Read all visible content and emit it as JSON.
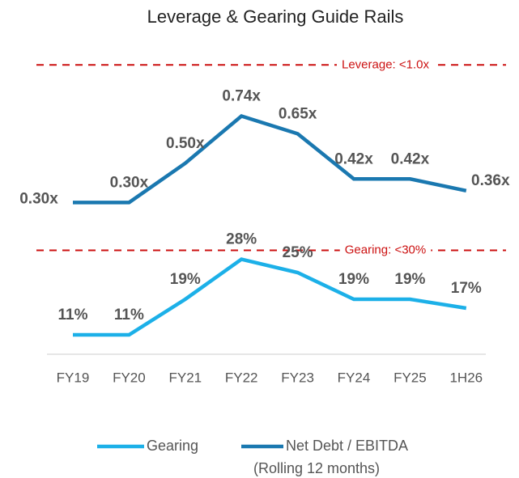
{
  "chart_data": {
    "type": "line",
    "title": "Leverage & Gearing Guide Rails",
    "categories": [
      "FY19",
      "FY20",
      "FY21",
      "FY22",
      "FY23",
      "FY24",
      "FY25",
      "1H26"
    ],
    "series": [
      {
        "name": "Gearing",
        "color": "#1cb0e8",
        "axis": "y2",
        "values": [
          11,
          11,
          19,
          28,
          25,
          19,
          19,
          17
        ],
        "value_labels": [
          "11%",
          "11%",
          "19%",
          "28%",
          "25%",
          "19%",
          "19%",
          "17%"
        ]
      },
      {
        "name": "Net Debt / EBITDA",
        "color": "#1a78b0",
        "values": [
          0.3,
          0.3,
          0.5,
          0.74,
          0.65,
          0.42,
          0.42,
          0.36
        ],
        "value_labels": [
          "0.30x",
          "0.30x",
          "0.50x",
          "0.74x",
          "0.65x",
          "0.42x",
          "0.42x",
          "0.36x"
        ]
      }
    ],
    "legend_note": "(Rolling 12 months)",
    "ylim": [
      0.1,
      1.1
    ],
    "y2lim": [
      0,
      40
    ],
    "reference_lines": [
      {
        "label": "Leverage: <1.0x",
        "value": 1.0,
        "axis": "y",
        "color": "#cc1111"
      },
      {
        "label": "Gearing: <30%",
        "value": 30,
        "axis": "y2",
        "color": "#cc1111"
      }
    ]
  }
}
